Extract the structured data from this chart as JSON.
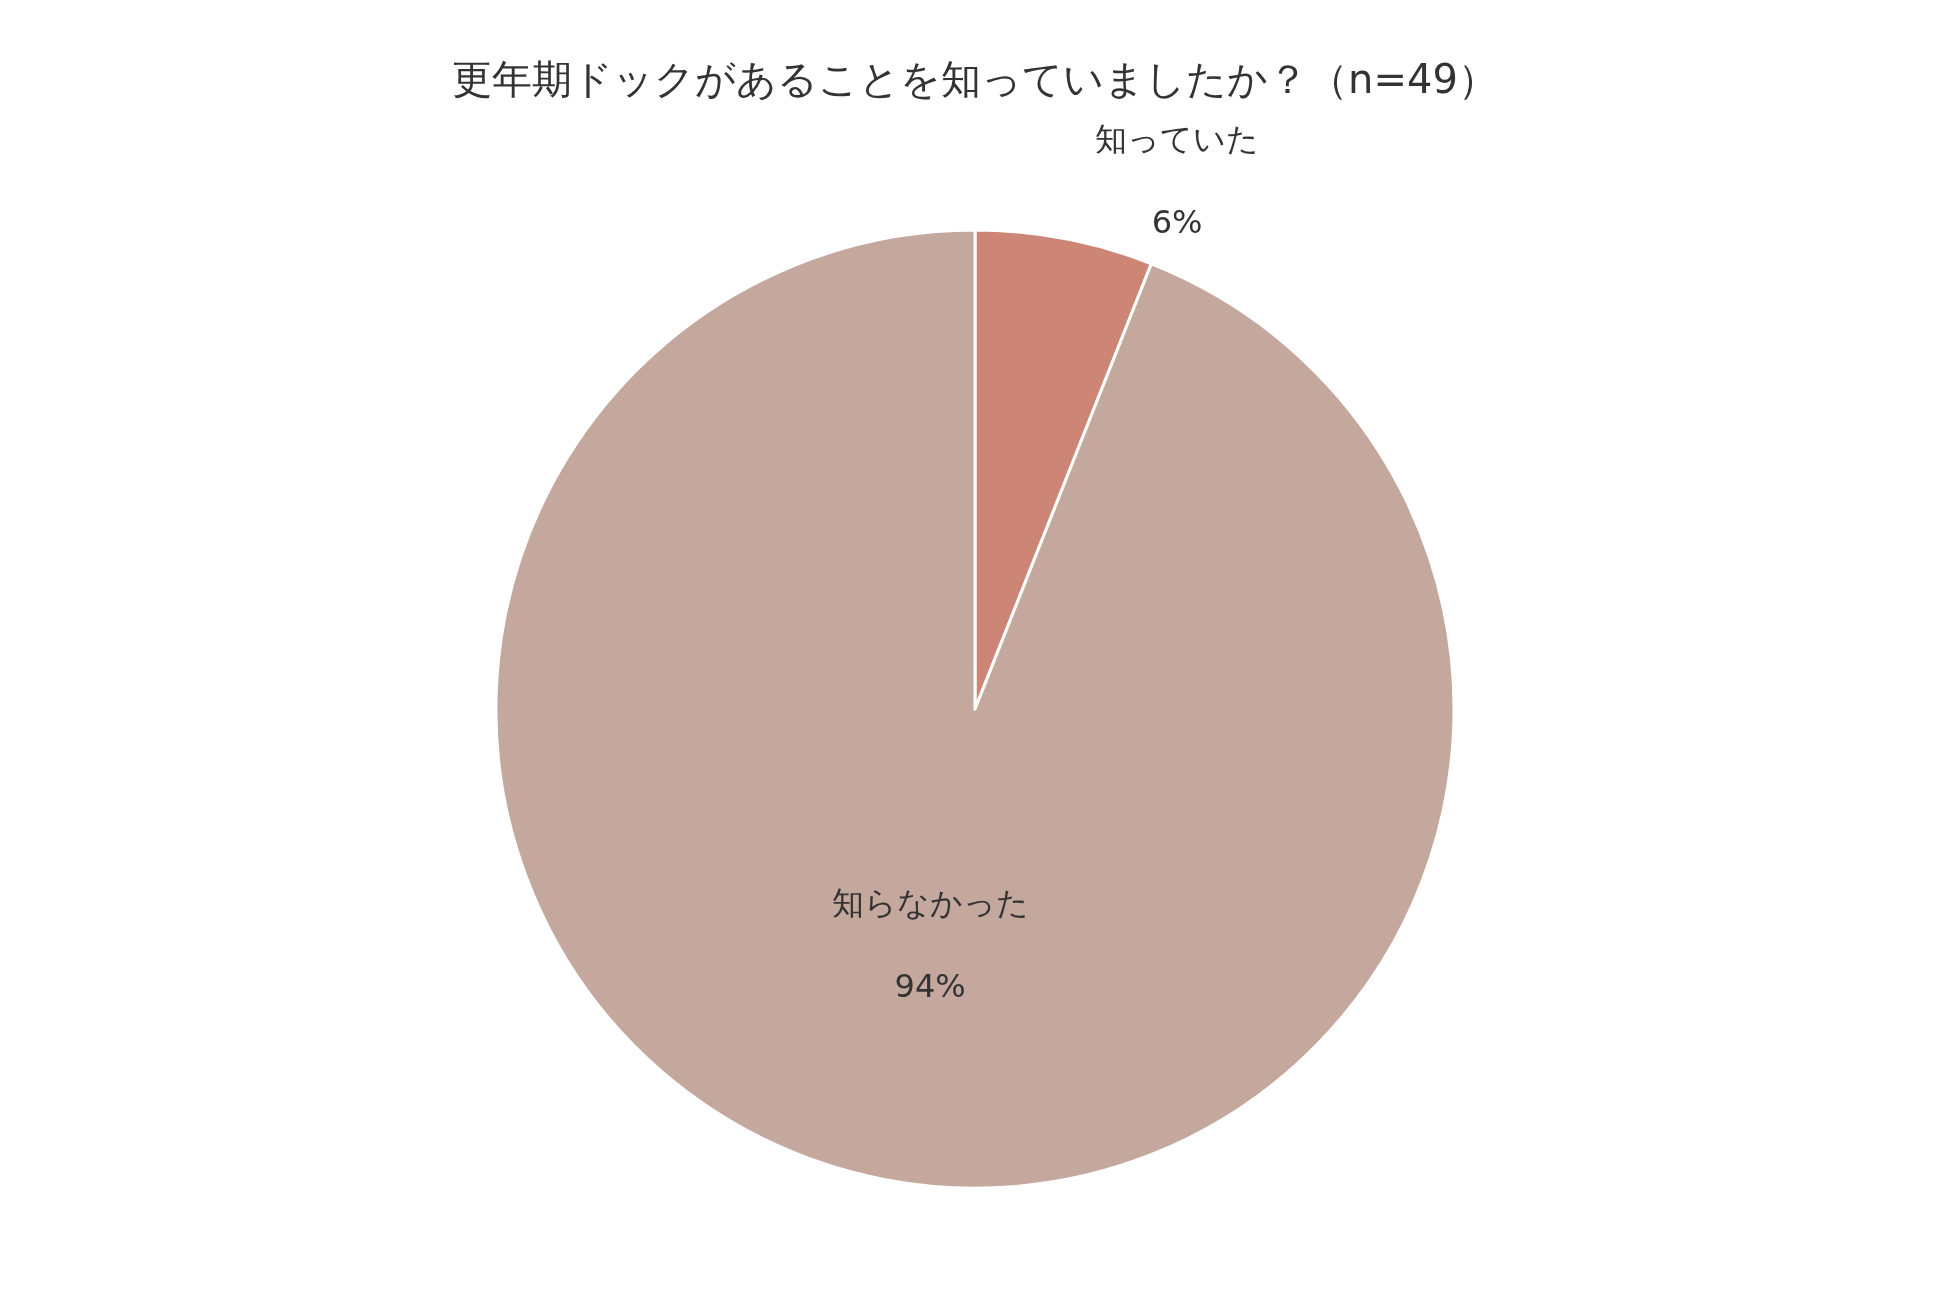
{
  "chart_data": {
    "type": "pie",
    "title": "更年期ドックがあることを知っていましたか？（n=49）",
    "categories": [
      "知っていた",
      "知らなかった"
    ],
    "values": [
      6,
      94
    ],
    "value_labels": [
      "6%",
      "94%"
    ],
    "colors": [
      "#cd8675",
      "#c4a89d"
    ],
    "legend": false
  }
}
